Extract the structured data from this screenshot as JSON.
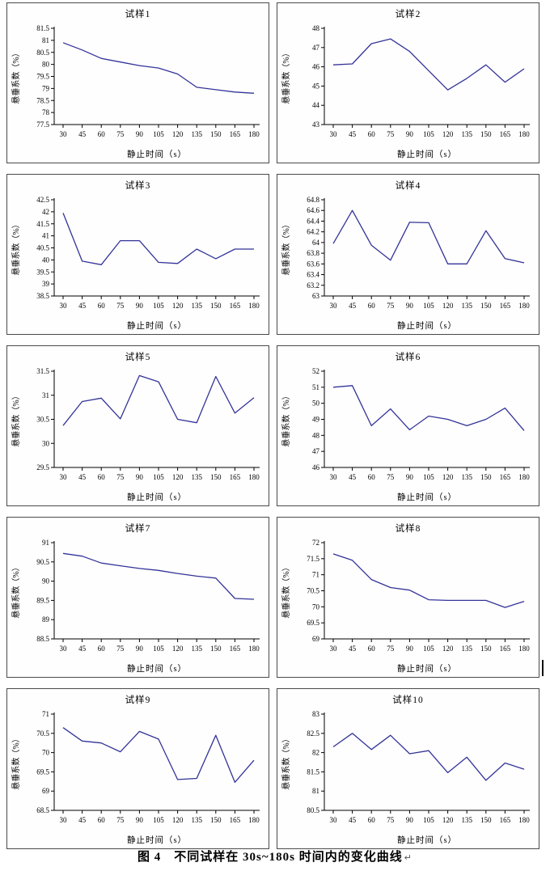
{
  "figure": {
    "caption": "图 4　不同试样在 30s~180s 时间内的变化曲线",
    "paragraph_mark": "↵"
  },
  "colors": {
    "line": "#333399",
    "axis": "#000000",
    "box_border": "#4a4a4a"
  },
  "chart_data": [
    {
      "type": "line",
      "title": "试样1",
      "xlabel": "静止时间（s）",
      "ylabel": "悬垂系数（%）",
      "x": [
        30,
        45,
        60,
        75,
        90,
        105,
        120,
        135,
        150,
        165,
        180
      ],
      "values": [
        80.9,
        80.6,
        80.25,
        80.1,
        79.95,
        79.85,
        79.6,
        79.05,
        78.95,
        78.85,
        78.8
      ],
      "ylim": [
        77.5,
        81.5
      ],
      "ytick_step": 0.5,
      "grid": false,
      "legend": null
    },
    {
      "type": "line",
      "title": "试样2",
      "xlabel": "静止时间（s）",
      "ylabel": "悬垂系数（%）",
      "x": [
        30,
        45,
        60,
        75,
        90,
        105,
        120,
        135,
        150,
        165,
        180
      ],
      "values": [
        46.1,
        46.15,
        47.2,
        47.45,
        46.8,
        45.8,
        44.8,
        45.4,
        46.1,
        45.2,
        45.9
      ],
      "ylim": [
        43,
        48
      ],
      "ytick_step": 1,
      "grid": false,
      "legend": null
    },
    {
      "type": "line",
      "title": "试样3",
      "xlabel": "静止时间（s）",
      "ylabel": "悬垂系数（%）",
      "x": [
        30,
        45,
        60,
        75,
        90,
        105,
        120,
        135,
        150,
        165,
        180
      ],
      "values": [
        41.95,
        39.95,
        39.8,
        40.8,
        40.8,
        39.9,
        39.85,
        40.45,
        40.05,
        40.45,
        40.45
      ],
      "ylim": [
        38.5,
        42.5
      ],
      "ytick_step": 0.5,
      "grid": false,
      "legend": null
    },
    {
      "type": "line",
      "title": "试样4",
      "xlabel": "静止时间（s）",
      "ylabel": "悬垂系数（%）",
      "x": [
        30,
        45,
        60,
        75,
        90,
        105,
        120,
        135,
        150,
        165,
        180
      ],
      "values": [
        63.98,
        64.6,
        63.95,
        63.67,
        64.38,
        64.37,
        63.6,
        63.6,
        64.22,
        63.7,
        63.62
      ],
      "ylim": [
        63,
        64.8
      ],
      "ytick_step": 0.2,
      "grid": false,
      "legend": null
    },
    {
      "type": "line",
      "title": "试样5",
      "xlabel": "静止时间（s）",
      "ylabel": "悬垂系数（%）",
      "x": [
        30,
        45,
        60,
        75,
        90,
        105,
        120,
        135,
        150,
        165,
        180
      ],
      "values": [
        30.37,
        30.87,
        30.94,
        30.51,
        31.41,
        31.28,
        30.5,
        30.43,
        31.39,
        30.63,
        30.95
      ],
      "ylim": [
        29.5,
        31.5
      ],
      "ytick_step": 0.5,
      "grid": false,
      "legend": null
    },
    {
      "type": "line",
      "title": "试样6",
      "xlabel": "静止时间（s）",
      "ylabel": "悬垂系数（%）",
      "x": [
        30,
        45,
        60,
        75,
        90,
        105,
        120,
        135,
        150,
        165,
        180
      ],
      "values": [
        51.0,
        51.1,
        48.6,
        49.65,
        48.35,
        49.2,
        49.0,
        48.6,
        49.0,
        49.7,
        48.3
      ],
      "ylim": [
        46,
        52
      ],
      "ytick_step": 1,
      "grid": false,
      "legend": null
    },
    {
      "type": "line",
      "title": "试样7",
      "xlabel": "静止时间（s）",
      "ylabel": "悬垂系数（%）",
      "x": [
        30,
        45,
        60,
        75,
        90,
        105,
        120,
        135,
        150,
        165,
        180
      ],
      "values": [
        90.72,
        90.65,
        90.47,
        90.4,
        90.33,
        90.28,
        90.2,
        90.13,
        90.08,
        89.55,
        89.53
      ],
      "ylim": [
        88.5,
        91
      ],
      "ytick_step": 0.5,
      "grid": false,
      "legend": null
    },
    {
      "type": "line",
      "title": "试样8",
      "xlabel": "静止时间（s）",
      "ylabel": "悬垂系数（%）",
      "x": [
        30,
        45,
        60,
        75,
        90,
        105,
        120,
        135,
        150,
        165,
        180
      ],
      "values": [
        71.65,
        71.45,
        70.85,
        70.6,
        70.52,
        70.22,
        70.2,
        70.2,
        70.2,
        69.98,
        70.17
      ],
      "ylim": [
        69,
        72
      ],
      "ytick_step": 0.5,
      "grid": false,
      "legend": null
    },
    {
      "type": "line",
      "title": "试样9",
      "xlabel": "静止时间（s）",
      "ylabel": "悬垂系数（%）",
      "x": [
        30,
        45,
        60,
        75,
        90,
        105,
        120,
        135,
        150,
        165,
        180
      ],
      "values": [
        70.65,
        70.3,
        70.25,
        70.02,
        70.55,
        70.35,
        69.3,
        69.33,
        70.45,
        69.23,
        69.8
      ],
      "ylim": [
        68.5,
        71
      ],
      "ytick_step": 0.5,
      "grid": false,
      "legend": null
    },
    {
      "type": "line",
      "title": "试样10",
      "xlabel": "静止时间（s）",
      "ylabel": "悬垂系数（%）",
      "x": [
        30,
        45,
        60,
        75,
        90,
        105,
        120,
        135,
        150,
        165,
        180
      ],
      "values": [
        82.15,
        82.5,
        82.08,
        82.45,
        81.97,
        82.05,
        81.48,
        81.88,
        81.28,
        81.73,
        81.57
      ],
      "ylim": [
        80.5,
        83
      ],
      "ytick_step": 0.5,
      "grid": false,
      "legend": null
    }
  ]
}
